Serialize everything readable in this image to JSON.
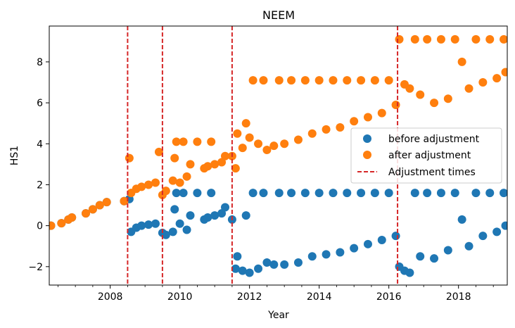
{
  "chart_data": {
    "type": "scatter",
    "title": "NEEM",
    "xlabel": "Year",
    "ylabel": "HS1",
    "xlim": [
      2006.25,
      2019.4
    ],
    "ylim": [
      -2.9,
      9.75
    ],
    "xticks": [
      {
        "value": 2008,
        "label": "2008"
      },
      {
        "value": 2010,
        "label": "2010"
      },
      {
        "value": 2012,
        "label": "2012"
      },
      {
        "value": 2014,
        "label": "2014"
      },
      {
        "value": 2016,
        "label": "2016"
      },
      {
        "value": 2018,
        "label": "2018"
      }
    ],
    "yticks": [
      {
        "value": -2,
        "label": "−2"
      },
      {
        "value": 0,
        "label": "0"
      },
      {
        "value": 2,
        "label": "2"
      },
      {
        "value": 4,
        "label": "4"
      },
      {
        "value": 6,
        "label": "6"
      },
      {
        "value": 8,
        "label": "8"
      }
    ],
    "legend_position": "center-right",
    "series": [
      {
        "name": "before adjustment",
        "color": "#1f77b4",
        "marker": "circle",
        "points": [
          [
            2006.3,
            0.0
          ],
          [
            2006.6,
            0.12
          ],
          [
            2006.8,
            0.3
          ],
          [
            2006.9,
            0.4
          ],
          [
            2007.3,
            0.6
          ],
          [
            2007.5,
            0.8
          ],
          [
            2007.7,
            1.0
          ],
          [
            2007.9,
            1.15
          ],
          [
            2008.4,
            1.2
          ],
          [
            2008.55,
            1.3
          ],
          [
            2008.6,
            -0.3
          ],
          [
            2008.75,
            -0.1
          ],
          [
            2008.9,
            0.0
          ],
          [
            2009.1,
            0.05
          ],
          [
            2009.3,
            0.1
          ],
          [
            2009.5,
            -0.35
          ],
          [
            2009.6,
            -0.45
          ],
          [
            2009.8,
            -0.3
          ],
          [
            2009.85,
            0.8
          ],
          [
            2009.9,
            1.6
          ],
          [
            2010.0,
            0.1
          ],
          [
            2010.1,
            1.6
          ],
          [
            2010.2,
            -0.2
          ],
          [
            2010.3,
            0.5
          ],
          [
            2010.5,
            1.6
          ],
          [
            2010.7,
            0.3
          ],
          [
            2010.8,
            0.4
          ],
          [
            2011.0,
            0.5
          ],
          [
            2010.9,
            1.6
          ],
          [
            2011.2,
            0.6
          ],
          [
            2011.3,
            0.9
          ],
          [
            2011.5,
            0.3
          ],
          [
            2011.6,
            -2.1
          ],
          [
            2011.65,
            -1.5
          ],
          [
            2011.8,
            -2.2
          ],
          [
            2011.9,
            0.5
          ],
          [
            2012.0,
            -2.3
          ],
          [
            2012.1,
            1.6
          ],
          [
            2012.25,
            -2.1
          ],
          [
            2012.4,
            1.6
          ],
          [
            2012.5,
            -1.8
          ],
          [
            2012.7,
            -1.9
          ],
          [
            2012.85,
            1.6
          ],
          [
            2013.0,
            -1.9
          ],
          [
            2013.2,
            1.6
          ],
          [
            2013.4,
            -1.8
          ],
          [
            2013.6,
            1.6
          ],
          [
            2013.8,
            -1.5
          ],
          [
            2014.0,
            1.6
          ],
          [
            2014.2,
            -1.4
          ],
          [
            2014.4,
            1.6
          ],
          [
            2014.6,
            -1.3
          ],
          [
            2014.8,
            1.6
          ],
          [
            2015.0,
            -1.1
          ],
          [
            2015.2,
            1.6
          ],
          [
            2015.4,
            -0.9
          ],
          [
            2015.6,
            1.6
          ],
          [
            2015.8,
            -0.7
          ],
          [
            2016.0,
            1.6
          ],
          [
            2016.2,
            -0.5
          ],
          [
            2016.3,
            -2.0
          ],
          [
            2016.45,
            -2.2
          ],
          [
            2016.6,
            -2.3
          ],
          [
            2016.75,
            1.6
          ],
          [
            2016.9,
            -1.5
          ],
          [
            2017.1,
            1.6
          ],
          [
            2017.3,
            -1.6
          ],
          [
            2017.5,
            1.6
          ],
          [
            2017.7,
            -1.2
          ],
          [
            2017.9,
            1.6
          ],
          [
            2018.1,
            0.3
          ],
          [
            2018.3,
            -1.0
          ],
          [
            2018.5,
            1.6
          ],
          [
            2018.7,
            -0.5
          ],
          [
            2018.9,
            1.6
          ],
          [
            2019.1,
            -0.3
          ],
          [
            2019.3,
            1.6
          ],
          [
            2019.35,
            0.0
          ]
        ]
      },
      {
        "name": "after adjustment",
        "color": "#ff7f0e",
        "marker": "circle",
        "points": [
          [
            2006.3,
            0.0
          ],
          [
            2006.6,
            0.12
          ],
          [
            2006.8,
            0.3
          ],
          [
            2006.9,
            0.4
          ],
          [
            2007.3,
            0.6
          ],
          [
            2007.5,
            0.8
          ],
          [
            2007.7,
            1.0
          ],
          [
            2007.9,
            1.15
          ],
          [
            2008.4,
            1.2
          ],
          [
            2008.55,
            3.3
          ],
          [
            2008.6,
            1.6
          ],
          [
            2008.75,
            1.8
          ],
          [
            2008.9,
            1.9
          ],
          [
            2009.1,
            2.0
          ],
          [
            2009.3,
            2.1
          ],
          [
            2009.4,
            3.6
          ],
          [
            2009.5,
            1.5
          ],
          [
            2009.6,
            1.7
          ],
          [
            2009.8,
            2.2
          ],
          [
            2009.85,
            3.3
          ],
          [
            2009.9,
            4.1
          ],
          [
            2010.0,
            2.1
          ],
          [
            2010.1,
            4.1
          ],
          [
            2010.2,
            2.4
          ],
          [
            2010.3,
            3.0
          ],
          [
            2010.5,
            4.1
          ],
          [
            2010.7,
            2.8
          ],
          [
            2010.8,
            2.9
          ],
          [
            2011.0,
            3.0
          ],
          [
            2010.9,
            4.1
          ],
          [
            2011.2,
            3.1
          ],
          [
            2011.3,
            3.4
          ],
          [
            2011.5,
            3.4
          ],
          [
            2011.6,
            2.8
          ],
          [
            2011.65,
            4.5
          ],
          [
            2011.8,
            3.8
          ],
          [
            2011.9,
            5.0
          ],
          [
            2012.0,
            4.3
          ],
          [
            2012.1,
            7.1
          ],
          [
            2012.25,
            4.0
          ],
          [
            2012.4,
            7.1
          ],
          [
            2012.5,
            3.7
          ],
          [
            2012.7,
            3.9
          ],
          [
            2012.85,
            7.1
          ],
          [
            2013.0,
            4.0
          ],
          [
            2013.2,
            7.1
          ],
          [
            2013.4,
            4.2
          ],
          [
            2013.6,
            7.1
          ],
          [
            2013.8,
            4.5
          ],
          [
            2014.0,
            7.1
          ],
          [
            2014.2,
            4.7
          ],
          [
            2014.4,
            7.1
          ],
          [
            2014.6,
            4.8
          ],
          [
            2014.8,
            7.1
          ],
          [
            2015.0,
            5.1
          ],
          [
            2015.2,
            7.1
          ],
          [
            2015.4,
            5.3
          ],
          [
            2015.6,
            7.1
          ],
          [
            2015.8,
            5.5
          ],
          [
            2016.0,
            7.1
          ],
          [
            2016.2,
            5.9
          ],
          [
            2016.3,
            9.1
          ],
          [
            2016.45,
            6.9
          ],
          [
            2016.6,
            6.7
          ],
          [
            2016.75,
            9.1
          ],
          [
            2016.9,
            6.4
          ],
          [
            2017.1,
            9.1
          ],
          [
            2017.3,
            6.0
          ],
          [
            2017.5,
            9.1
          ],
          [
            2017.7,
            6.2
          ],
          [
            2017.9,
            9.1
          ],
          [
            2018.1,
            8.0
          ],
          [
            2018.3,
            6.7
          ],
          [
            2018.5,
            9.1
          ],
          [
            2018.7,
            7.0
          ],
          [
            2018.9,
            9.1
          ],
          [
            2019.1,
            7.2
          ],
          [
            2019.3,
            9.1
          ],
          [
            2019.35,
            7.5
          ]
        ]
      }
    ],
    "adjustment_lines": {
      "name": "Adjustment times",
      "color": "#d62728",
      "style": "dashed",
      "x": [
        2008.5,
        2009.5,
        2011.5,
        2016.25
      ]
    }
  }
}
